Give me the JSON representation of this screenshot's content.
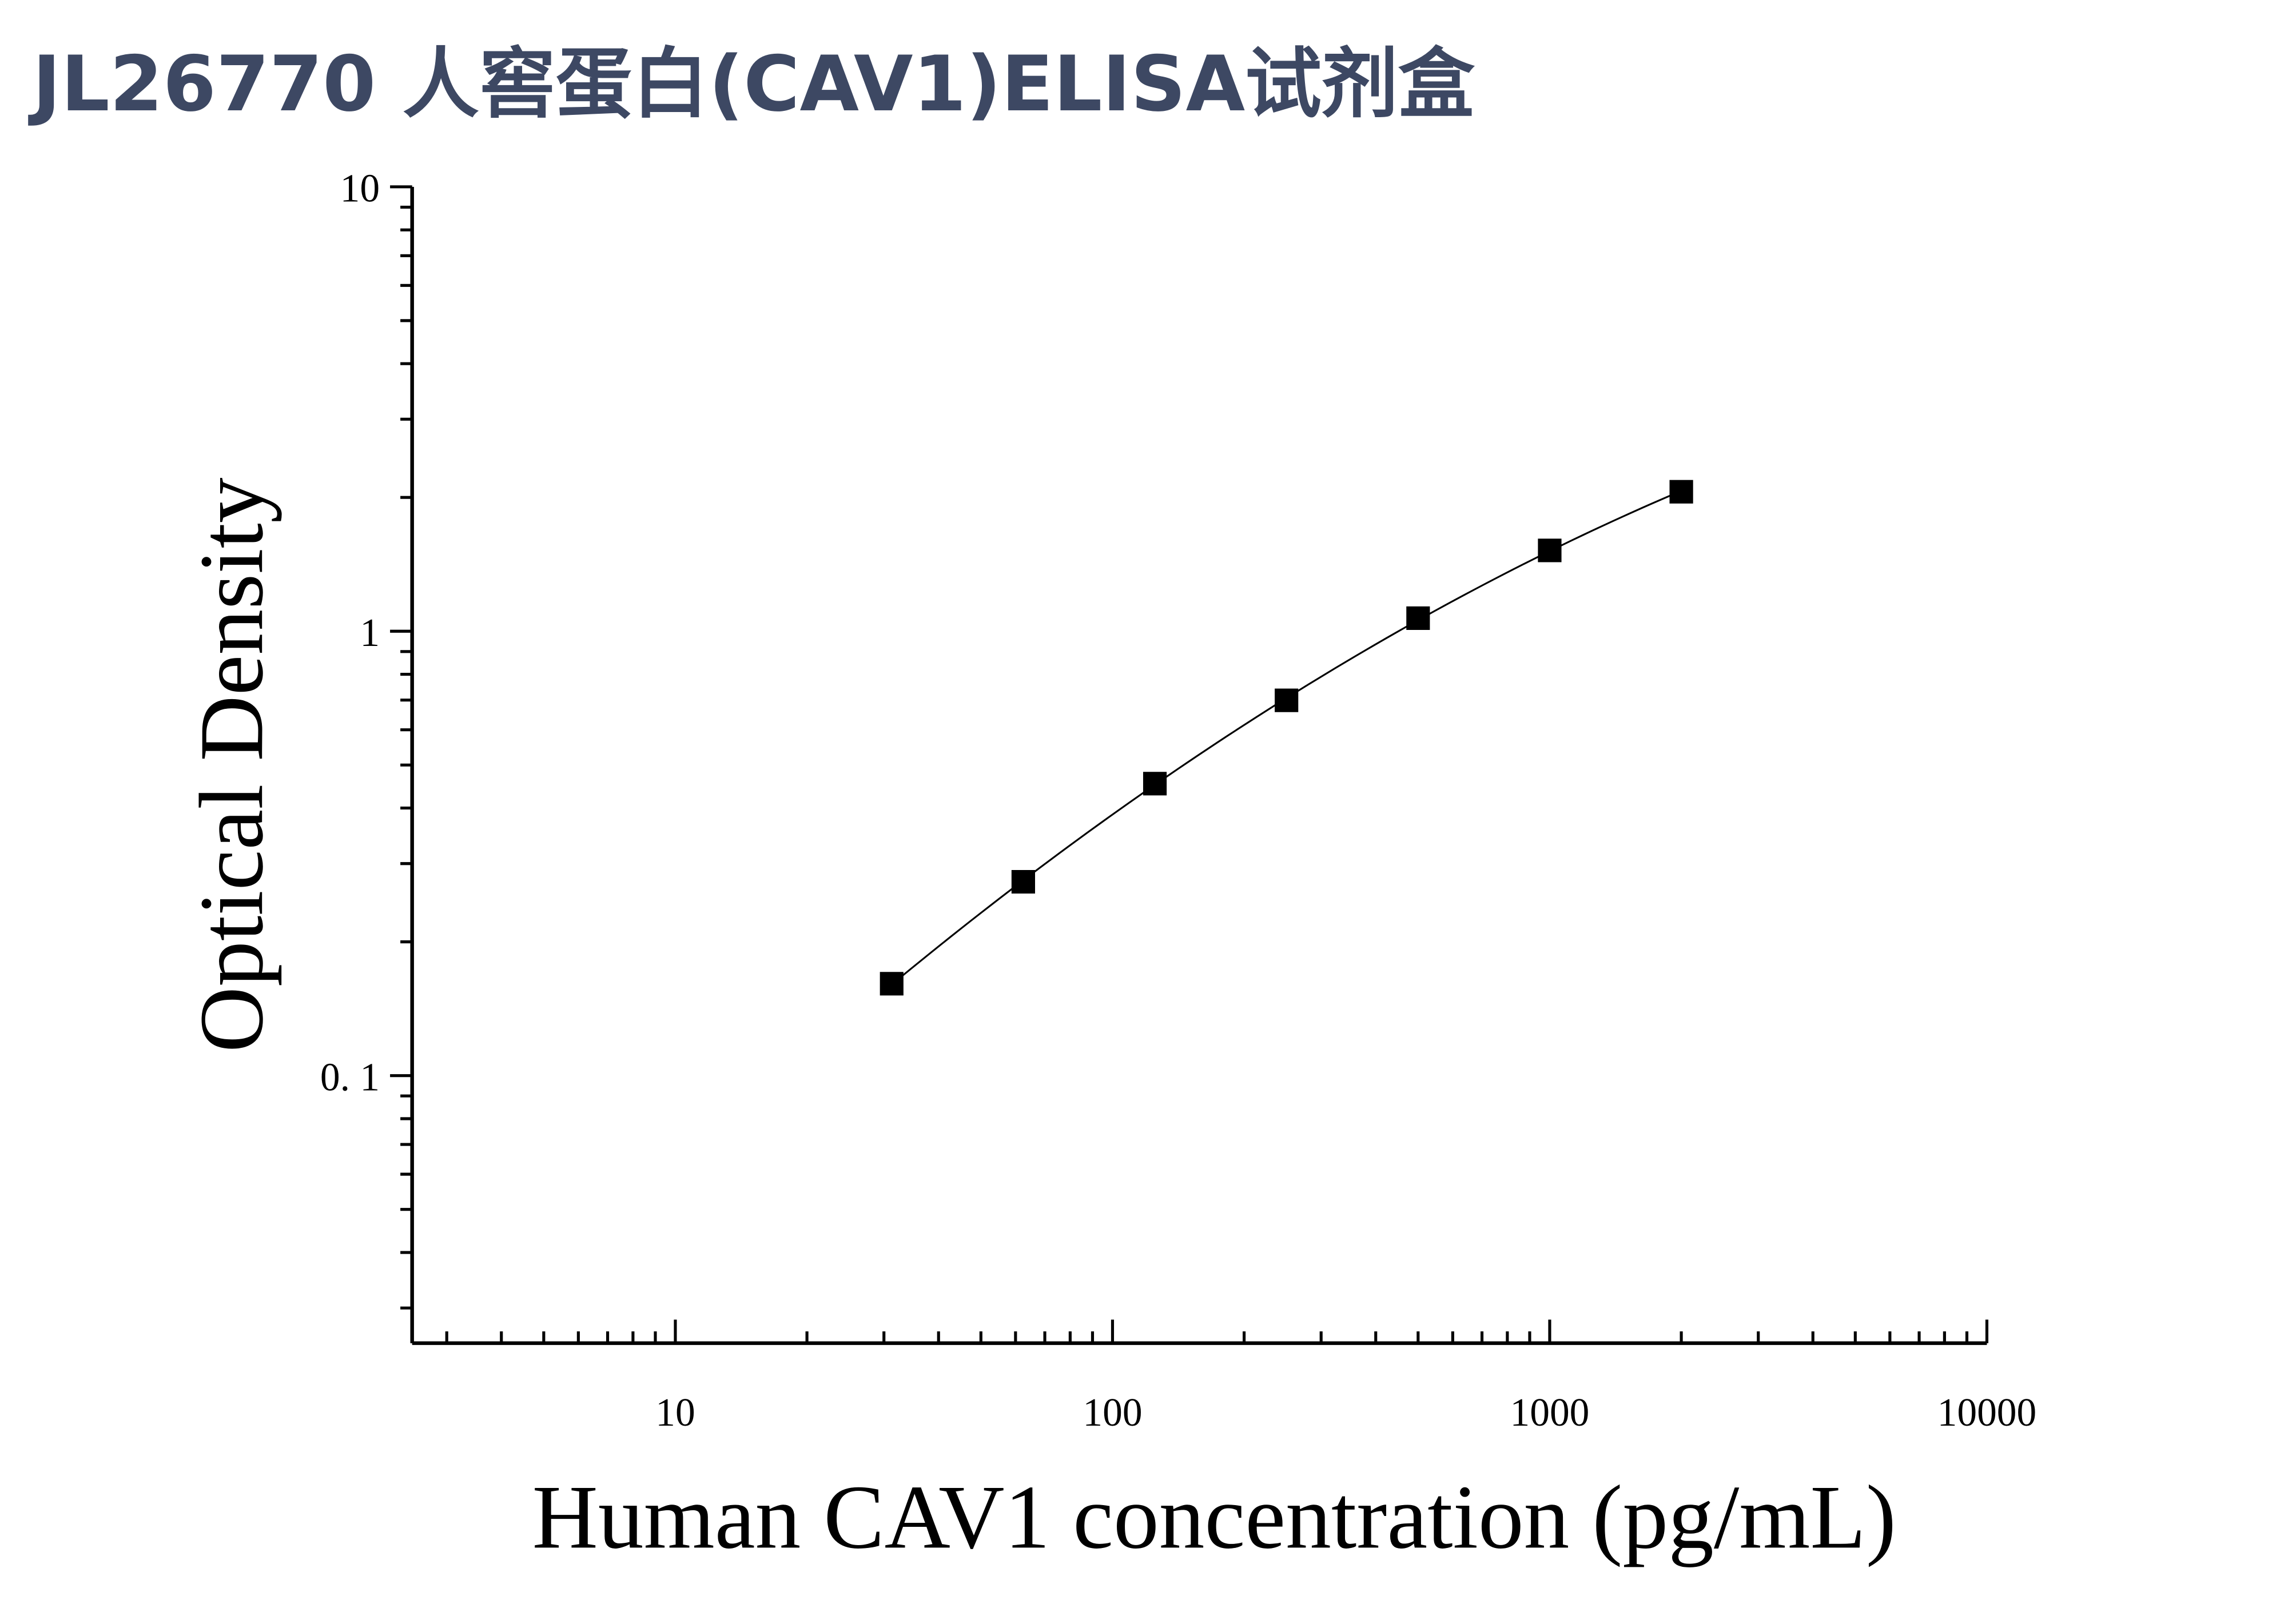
{
  "title": "JL26770 人窖蛋白(CAV1)ELISA试剂盒",
  "chart_data": {
    "type": "scatter",
    "title": "JL26770 人窖蛋白(CAV1)ELISA试剂盒",
    "xlabel": "Human CAV1 concentration (pg/mL)",
    "ylabel": "Optical Density",
    "xscale": "log",
    "yscale": "log",
    "xlim": [
      2.5,
      10000
    ],
    "ylim": [
      0.025,
      10
    ],
    "x_ticks": [
      10,
      100,
      1000,
      10000
    ],
    "x_tick_labels": [
      "10",
      "100",
      "1000",
      "10000"
    ],
    "y_ticks": [
      0.1,
      1,
      10
    ],
    "y_tick_labels": [
      "0. 1",
      "1",
      "10"
    ],
    "grid": false,
    "marker": "square",
    "marker_color": "#000000",
    "fit_line": true,
    "x": [
      31.25,
      62.5,
      125,
      250,
      500,
      1000,
      2000
    ],
    "y": [
      0.161,
      0.273,
      0.454,
      0.699,
      1.07,
      1.52,
      2.06
    ]
  }
}
